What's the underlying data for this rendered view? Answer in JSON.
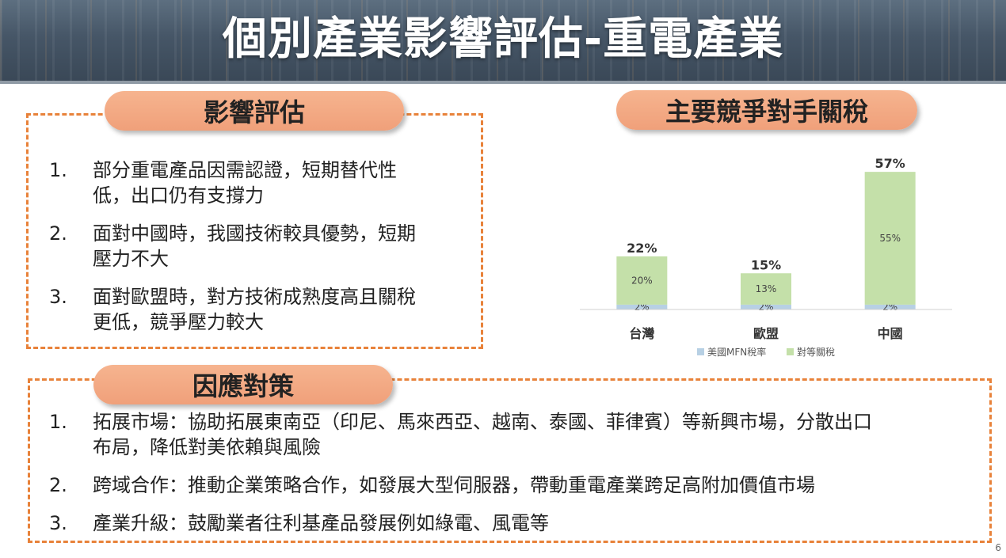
{
  "title": "個別產業影響評估-重電產業",
  "impact": {
    "heading": "影響評估",
    "items": [
      {
        "num": "1.",
        "line1": "部分重電產品因需認證，短期替代性",
        "line2": "低，出口仍有支撐力"
      },
      {
        "num": "2.",
        "line1": "面對中國時，我國技術較具優勢，短期",
        "line2": "壓力不大"
      },
      {
        "num": "3.",
        "line1": "面對歐盟時，對方技術成熟度高且關稅",
        "line2": "更低，競爭壓力較大"
      }
    ]
  },
  "chart_heading": "主要競爭對手關稅",
  "chart_data": {
    "type": "bar",
    "stacked": true,
    "categories": [
      "台灣",
      "歐盟",
      "中國"
    ],
    "series": [
      {
        "name": "美國MFN稅率",
        "values": [
          2,
          2,
          2
        ],
        "labels": [
          "2%",
          "2%",
          "2%"
        ],
        "color": "#b7d0e4"
      },
      {
        "name": "對等關稅",
        "values": [
          20,
          13,
          55
        ],
        "labels": [
          "20%",
          "13%",
          "55%"
        ],
        "color": "#c4e0a9"
      }
    ],
    "totals": [
      22,
      15,
      57
    ],
    "total_labels": [
      "22%",
      "15%",
      "57%"
    ],
    "ylim": [
      0,
      60
    ],
    "grid": false,
    "legend": "bottom"
  },
  "response": {
    "heading": "因應對策",
    "items": [
      {
        "num": "1.",
        "line1": "拓展市場：協助拓展東南亞（印尼、馬來西亞、越南、泰國、菲律賓）等新興市場，分散出口",
        "line2": "布局，降低對美依賴與風險"
      },
      {
        "num": "2.",
        "line1": "跨域合作：推動企業策略合作，如發展大型伺服器，帶動重電產業跨足高附加價值市場",
        "line2": ""
      },
      {
        "num": "3.",
        "line1": "產業升級：鼓勵業者往利基產品發展例如綠電、風電等",
        "line2": ""
      }
    ]
  },
  "page_number": "6"
}
